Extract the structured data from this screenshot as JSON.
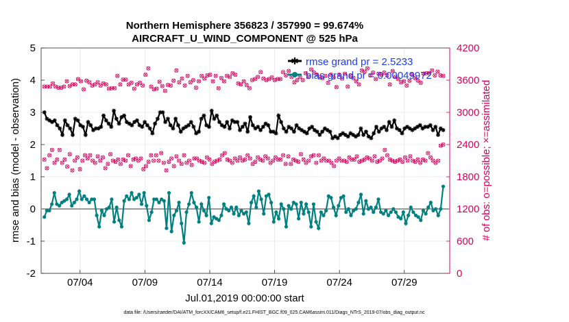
{
  "chart_data": {
    "type": "line",
    "title": "Northern Hemisphere 356823 / 357990 = 99.674%",
    "subtitle": "AIRCRAFT_U_WIND_COMPONENT @ 525 hPa",
    "xlabel": "Jul.01,2019 00:00:00 start",
    "ylabel_left": "rmse and bias (model - observation)",
    "ylabel_right": "# of obs: o=possible; ×=assimilated",
    "footnote": "data file: /Users/raeder/DAI/ATM_forcXX/CAM6_setup/f.e21.FHIST_BGC.f09_025.CAM6assim.011/Diags_NTrS_2019-07/obs_diag_output.nc",
    "x_ticks": [
      "07/04",
      "07/09",
      "07/14",
      "07/19",
      "07/24",
      "07/29"
    ],
    "x_tick_days": [
      4,
      9,
      14,
      19,
      24,
      29
    ],
    "xlim_days": [
      1,
      32.5
    ],
    "ylim_left": [
      -2,
      5
    ],
    "y_ticks_left": [
      "-2",
      "-1",
      "0",
      "1",
      "2",
      "3",
      "4",
      "5"
    ],
    "ylim_right": [
      0,
      4200
    ],
    "y_ticks_right": [
      "0",
      "600",
      "1200",
      "1800",
      "2400",
      "3000",
      "3600",
      "4200"
    ],
    "grid": true,
    "legend_placement": "top-right",
    "colors": {
      "rmse": "#000000",
      "bias": "#008080",
      "obs": "#d6005c",
      "zero": "#9a9a9a",
      "legend_text": "#1a3cf0"
    },
    "series": [
      {
        "name": "rmse grand pr = 2.5233",
        "axis": "left",
        "values": [
          3.0,
          2.8,
          2.75,
          2.7,
          2.75,
          2.6,
          2.5,
          2.3,
          2.75,
          2.6,
          2.5,
          2.3,
          2.8,
          2.75,
          2.6,
          2.55,
          2.3,
          2.7,
          2.6,
          2.45,
          2.5,
          2.5,
          2.55,
          2.9,
          2.75,
          2.65,
          2.55,
          3.05,
          2.8,
          2.65,
          2.85,
          2.9,
          2.7,
          2.65,
          2.6,
          2.7,
          2.75,
          2.6,
          2.55,
          2.7,
          2.6,
          2.5,
          2.35,
          2.65,
          2.8,
          3.0,
          3.0,
          2.7,
          2.8,
          2.6,
          2.5,
          2.8,
          2.6,
          2.4,
          2.5,
          2.55,
          2.6,
          2.7,
          2.55,
          2.35,
          2.4,
          2.8,
          2.9,
          2.6,
          2.55,
          3.05,
          2.8,
          2.9,
          2.7,
          2.6,
          2.55,
          2.7,
          2.5,
          2.75,
          2.7,
          2.7,
          2.45,
          2.55,
          2.65,
          2.4,
          2.85,
          2.6,
          2.5,
          2.55,
          2.45,
          2.55,
          2.65,
          2.6,
          2.4,
          2.4,
          2.35,
          2.9,
          2.7,
          2.5,
          2.4,
          2.55,
          2.5,
          2.4,
          2.6,
          2.5,
          2.45,
          2.4,
          2.35,
          2.5,
          2.55,
          2.45,
          2.4,
          2.3,
          2.4,
          2.5,
          2.45,
          2.4,
          2.2,
          2.25,
          2.2,
          2.3,
          2.35,
          2.3,
          2.25,
          2.35,
          2.3,
          2.25,
          2.3,
          2.5,
          2.3,
          2.4,
          2.25,
          2.2,
          2.35,
          2.55,
          2.4,
          2.5,
          2.55,
          2.45,
          2.7,
          2.55,
          2.75,
          2.5,
          2.45,
          2.35,
          2.5,
          2.55,
          2.5,
          2.45,
          2.5,
          2.55,
          2.6,
          2.5,
          2.55,
          2.55,
          2.6,
          2.45,
          2.55,
          2.3,
          2.5,
          2.45
        ]
      },
      {
        "name": "bias grand pr = 0.00049972",
        "axis": "left",
        "values": [
          -0.25,
          -0.05,
          -0.05,
          0.15,
          0.5,
          0.15,
          0.1,
          0.2,
          0.25,
          0.3,
          0.45,
          0.1,
          0.2,
          0.3,
          0.55,
          0.3,
          0.4,
          0.3,
          0.2,
          0.3,
          0.3,
          -0.2,
          -0.55,
          -0.05,
          -0.2,
          0.0,
          0.05,
          0.3,
          -0.4,
          0.05,
          -0.35,
          -0.55,
          0.25,
          0.4,
          0.3,
          0.5,
          0.3,
          0.35,
          0.45,
          0.15,
          0.5,
          0.1,
          -0.35,
          -0.1,
          0.3,
          0.3,
          0.2,
          0.3,
          0.25,
          -0.6,
          0.5,
          -0.7,
          -0.2,
          -0.05,
          0.2,
          -0.45,
          -1.05,
          -0.1,
          0.15,
          0.5,
          0.2,
          0.05,
          -0.4,
          0.15,
          -0.05,
          -0.2,
          0.35,
          -0.45,
          -0.25,
          -0.3,
          -0.35,
          -0.2,
          0.15,
          0.0,
          -0.05,
          0.05,
          -0.15,
          0.05,
          -0.2,
          -0.05,
          -0.15,
          -0.1,
          -0.45,
          0.2,
          0.4,
          0.05,
          0.55,
          0.3,
          -0.15,
          0.4,
          0.45,
          0.2,
          -0.4,
          -0.1,
          -0.3,
          0.15,
          0.0,
          -0.55,
          0.1,
          0.0,
          0.2,
          0.15,
          -0.3,
          0.2,
          -0.15,
          0.15,
          -0.1,
          -0.55,
          0.15,
          -0.4,
          -0.6,
          -0.1,
          -0.2,
          -0.05,
          0.4,
          0.35,
          0.05,
          -0.2,
          0.1,
          0.35,
          0.4,
          -0.1,
          0.0,
          -0.2,
          -0.05,
          0.0,
          0.2,
          0.45,
          -0.15,
          0.25,
          0.0,
          0.05,
          -0.1,
          0.05,
          0.3,
          -0.1,
          -0.15,
          -0.05,
          -0.2,
          -0.1,
          0.0,
          -0.1,
          -0.25,
          -0.3,
          -0.1,
          -0.45,
          -0.2,
          0.05,
          -0.1,
          -0.2,
          -0.25,
          -0.35,
          -0.05,
          -0.15,
          0.05,
          0.2,
          -0.05,
          0.0,
          -0.2,
          0.0,
          0.7
        ]
      },
      {
        "name": "possible (high)",
        "axis": "right",
        "values": [
          3480,
          3480,
          3480,
          3540,
          3480,
          3460,
          3460,
          3480,
          3580,
          3490,
          3520,
          3520,
          3620,
          3580,
          3430,
          3590,
          3560,
          3500,
          3520,
          3560,
          3500,
          3540,
          3520,
          3440,
          3450,
          3450,
          3680,
          3520,
          3610,
          3610,
          3520,
          3550,
          3440,
          3520,
          3550,
          3500,
          3700,
          3820,
          3480,
          3430,
          3440,
          3570,
          3490,
          3400,
          3510,
          3500,
          3590,
          3780,
          3560,
          3630,
          3500,
          3680,
          3560,
          3600,
          3460,
          3580,
          3680,
          3630,
          3690,
          3700,
          3580,
          3680,
          3450,
          3640,
          3580,
          3680,
          3660,
          3730,
          3700,
          3540,
          3520,
          3580,
          3510,
          3450,
          3600,
          3620,
          3660,
          3750,
          3630,
          3600,
          3620,
          3650,
          3600,
          3620,
          3620,
          3750,
          3690,
          3770,
          3660,
          3560,
          3600,
          3660,
          3600,
          3730,
          3660,
          3800,
          3740,
          3700,
          3650,
          3640,
          3680,
          3550,
          3700,
          3650,
          3470,
          3700,
          3630,
          3720,
          3480,
          3680,
          3640,
          3580,
          3520,
          3780,
          3760,
          3820,
          3690,
          3740,
          3620,
          3720,
          3700,
          3740,
          3690,
          3520,
          3770,
          3660,
          3620,
          3560,
          3580,
          3500,
          3590,
          3700,
          3640,
          3590,
          3550,
          3720,
          3730,
          3730,
          3780,
          3690,
          3760,
          3690,
          3680
        ]
      },
      {
        "name": "possible (low)",
        "axis": "right",
        "values": [
          2120,
          1960,
          2200,
          2300,
          2060,
          2120,
          2300,
          2060,
          2120,
          1990,
          2220,
          1920,
          2100,
          2160,
          1940,
          2100,
          2200,
          2140,
          2200,
          2100,
          2060,
          2180,
          2100,
          2160,
          1960,
          2040,
          2220,
          2100,
          2080,
          2120,
          2040,
          2120,
          2100,
          2200,
          2000,
          2120,
          2140,
          2100,
          2140,
          1940,
          2000,
          2080,
          2200,
          2100,
          2200,
          2100,
          2240,
          2060,
          1920,
          2080,
          2140,
          2000,
          2180,
          2100,
          2040,
          2200,
          2060,
          2100,
          2020,
          2140,
          2140,
          2100,
          2080,
          2060,
          2160,
          2120,
          2040,
          2080,
          2100,
          2120,
          2200,
          2240,
          2120,
          2100,
          2060,
          2140,
          2100,
          2160,
          2100,
          2120,
          2200,
          2140,
          2040,
          2080,
          2160,
          2120,
          2100,
          2180,
          2140,
          2060,
          2100,
          2160,
          2120,
          2120,
          2200,
          2040,
          2180,
          2040,
          2120,
          2100,
          2080,
          2220,
          2120,
          2060,
          2100,
          2180,
          2200,
          2060,
          2200,
          2100,
          2140,
          2100,
          2100,
          2060,
          2000,
          2100,
          2140,
          2100,
          2100,
          2080,
          2160,
          2120,
          2120,
          2180,
          2080,
          2100,
          2120,
          2160,
          2140,
          2100,
          2180,
          2080,
          2100,
          2140,
          2300,
          2200,
          2120,
          2100,
          2080,
          2100,
          2120,
          2080,
          2160,
          2100,
          2180,
          2100,
          2080,
          2120,
          2060,
          2120,
          2100,
          2240,
          2160,
          2100,
          2060,
          2100,
          2380,
          2400
        ]
      }
    ]
  }
}
